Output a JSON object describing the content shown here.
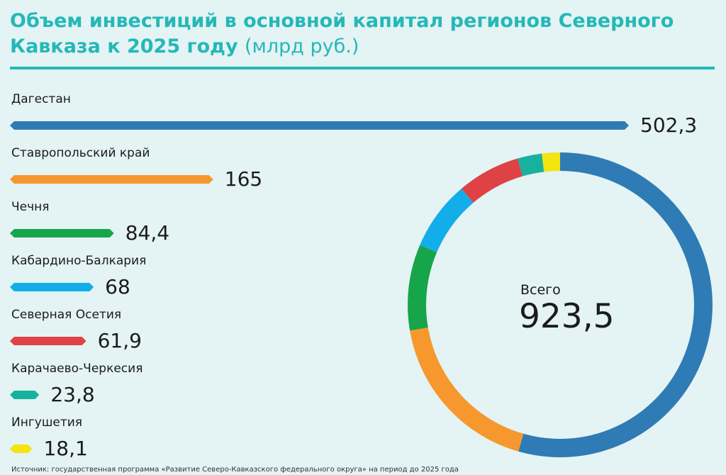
{
  "chart_data": {
    "type": "bar",
    "title_main": "Объем инвестиций в основной капитал регионов Северного Кавказа к 2025 году",
    "title_unit": "(млрд руб.)",
    "categories": [
      "Дагестан",
      "Ставропольский край",
      "Чечня",
      "Кабардино-Балкария",
      "Северная Осетия",
      "Карачаево-Черкесия",
      "Ингушетия"
    ],
    "values": [
      502.3,
      165,
      84.4,
      68,
      61.9,
      23.8,
      18.1
    ],
    "value_labels": [
      "502,3",
      "165",
      "84,4",
      "68",
      "61,9",
      "23,8",
      "18,1"
    ],
    "colors": [
      "#2f7bb5",
      "#f6982d",
      "#16a54b",
      "#11aeea",
      "#df4245",
      "#17b29f",
      "#f4e40f"
    ],
    "total_label": "Всего",
    "total_value": "923,5",
    "total": 923.5,
    "legend": "none"
  },
  "source": "Источник: государственная программа «Развитие Северо-Кавказского федерального округа» на период до 2025 года"
}
